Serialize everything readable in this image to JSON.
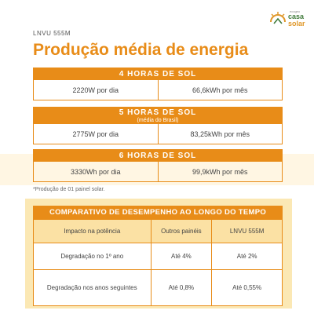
{
  "brand": {
    "line1": "ecogeo",
    "line2": "casa",
    "line3": "solar"
  },
  "model": "LNVU 555M",
  "title": "Produção média de energia",
  "sun_blocks": [
    {
      "heading": "4 HORAS DE SOL",
      "subheading": "",
      "daily": "2220W por dia",
      "monthly": "66,6kWh por mês"
    },
    {
      "heading": "5 HORAS DE SOL",
      "subheading": "(média do Brasil)",
      "daily": "2775W por dia",
      "monthly": "83,25kWh por mês"
    },
    {
      "heading": "6 HORAS DE SOL",
      "subheading": "",
      "daily": "3330Wh por dia",
      "monthly": "99,9kWh por mês"
    }
  ],
  "note": "*Produção de 01 painel solar.",
  "comparison": {
    "heading": "COMPARATIVO DE DESEMPENHO AO LONGO DO TEMPO",
    "columns": [
      "Impacto na potência",
      "Outros painéis",
      "LNVU 555M"
    ],
    "rows": [
      [
        "Degradação no 1º ano",
        "Até 4%",
        "Até 2%"
      ],
      [
        "Degradação nos anos seguintes",
        "Até 0,8%",
        "Até 0,55%"
      ]
    ]
  },
  "colors": {
    "accent": "#e88c18",
    "header_fill": "#fbe1a4",
    "panel_bg": "#fbe8b4",
    "brand_green": "#3f7a3a"
  }
}
